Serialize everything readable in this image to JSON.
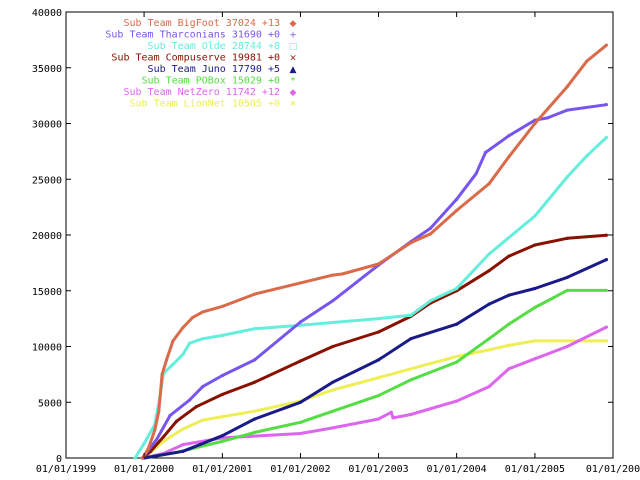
{
  "chart_data": {
    "type": "line",
    "xlabel": "",
    "ylabel": "",
    "x_axis": {
      "type": "date",
      "min": "1999-01-01",
      "max": "2006-01-01",
      "tick_labels": [
        "01/01/1999",
        "01/01/2000",
        "01/01/2001",
        "01/01/2002",
        "01/01/2003",
        "01/01/2004",
        "01/01/2005",
        "01/01/200"
      ]
    },
    "y_axis": {
      "min": 0,
      "max": 40000,
      "tick_labels": [
        "0",
        "5000",
        "10000",
        "15000",
        "20000",
        "25000",
        "30000",
        "35000",
        "40000"
      ]
    },
    "grid": false,
    "legend_position": "top-left",
    "series": [
      {
        "name": "Sub Team BigFoot 37024 +13",
        "color": "#d96a4a",
        "marker": "diamond",
        "points": [
          [
            "1999-12-25",
            0
          ],
          [
            "2000-01-20",
            800
          ],
          [
            "2000-02-20",
            2500
          ],
          [
            "2000-03-10",
            4200
          ],
          [
            "2000-03-25",
            7500
          ],
          [
            "2000-04-15",
            8800
          ],
          [
            "2000-05-15",
            10500
          ],
          [
            "2000-07-01",
            11700
          ],
          [
            "2000-08-15",
            12600
          ],
          [
            "2000-10-01",
            13100
          ],
          [
            "2001-01-01",
            13600
          ],
          [
            "2001-06-01",
            14700
          ],
          [
            "2002-01-01",
            15700
          ],
          [
            "2002-06-01",
            16400
          ],
          [
            "2002-07-15",
            16500
          ],
          [
            "2003-01-01",
            17400
          ],
          [
            "2003-06-01",
            19300
          ],
          [
            "2003-09-01",
            20100
          ],
          [
            "2004-01-01",
            22200
          ],
          [
            "2004-06-01",
            24600
          ],
          [
            "2004-09-01",
            27000
          ],
          [
            "2005-01-01",
            30000
          ],
          [
            "2005-06-01",
            33300
          ],
          [
            "2005-09-01",
            35600
          ],
          [
            "2005-12-01",
            37024
          ]
        ]
      },
      {
        "name": "Sub Team Tharconians 31690 +0",
        "color": "#7755ee",
        "marker": "plus",
        "points": [
          [
            "1999-12-25",
            0
          ],
          [
            "2000-03-01",
            1700
          ],
          [
            "2000-05-01",
            3800
          ],
          [
            "2000-08-01",
            5200
          ],
          [
            "2000-10-01",
            6400
          ],
          [
            "2001-01-01",
            7400
          ],
          [
            "2001-06-01",
            8800
          ],
          [
            "2002-01-01",
            12200
          ],
          [
            "2002-06-01",
            14100
          ],
          [
            "2003-01-01",
            17300
          ],
          [
            "2003-06-01",
            19400
          ],
          [
            "2003-09-01",
            20600
          ],
          [
            "2004-01-01",
            23200
          ],
          [
            "2004-04-01",
            25500
          ],
          [
            "2004-05-15",
            27400
          ],
          [
            "2004-09-01",
            28900
          ],
          [
            "2005-01-01",
            30300
          ],
          [
            "2005-03-01",
            30500
          ],
          [
            "2005-06-01",
            31200
          ],
          [
            "2005-12-01",
            31690
          ]
        ]
      },
      {
        "name": "Sub Team Olde 28744 +8",
        "color": "#66eedd",
        "marker": "square",
        "points": [
          [
            "1999-11-20",
            0
          ],
          [
            "2000-01-01",
            1300
          ],
          [
            "2000-02-20",
            3000
          ],
          [
            "2000-03-15",
            5500
          ],
          [
            "2000-04-01",
            7600
          ],
          [
            "2000-05-15",
            8400
          ],
          [
            "2000-07-01",
            9300
          ],
          [
            "2000-08-01",
            10300
          ],
          [
            "2000-10-01",
            10700
          ],
          [
            "2001-01-01",
            11000
          ],
          [
            "2001-06-01",
            11600
          ],
          [
            "2002-01-01",
            11900
          ],
          [
            "2002-06-01",
            12150
          ],
          [
            "2003-01-01",
            12500
          ],
          [
            "2003-06-01",
            12800
          ],
          [
            "2003-09-01",
            14100
          ],
          [
            "2004-01-01",
            15200
          ],
          [
            "2004-06-01",
            18300
          ],
          [
            "2005-01-01",
            21700
          ],
          [
            "2005-06-01",
            25200
          ],
          [
            "2005-09-01",
            27100
          ],
          [
            "2005-12-01",
            28744
          ]
        ]
      },
      {
        "name": "Sub Team Compuserve 19981 +0",
        "color": "#881100",
        "marker": "x",
        "points": [
          [
            "1999-12-25",
            0
          ],
          [
            "2000-02-01",
            600
          ],
          [
            "2000-04-01",
            1900
          ],
          [
            "2000-06-01",
            3300
          ],
          [
            "2000-09-01",
            4600
          ],
          [
            "2001-01-01",
            5700
          ],
          [
            "2001-06-01",
            6800
          ],
          [
            "2002-01-01",
            8700
          ],
          [
            "2002-06-01",
            10000
          ],
          [
            "2003-01-01",
            11300
          ],
          [
            "2003-06-01",
            12700
          ],
          [
            "2003-09-01",
            13900
          ],
          [
            "2004-01-01",
            15000
          ],
          [
            "2004-06-01",
            16800
          ],
          [
            "2004-09-01",
            18100
          ],
          [
            "2005-01-01",
            19100
          ],
          [
            "2005-06-01",
            19700
          ],
          [
            "2005-12-01",
            19981
          ]
        ]
      },
      {
        "name": "Sub Team Juno 17790 +5",
        "color": "#1a1a88",
        "marker": "triangle",
        "points": [
          [
            "2000-01-01",
            0
          ],
          [
            "2000-07-01",
            600
          ],
          [
            "2001-01-01",
            2000
          ],
          [
            "2001-06-01",
            3500
          ],
          [
            "2002-01-01",
            5000
          ],
          [
            "2002-06-01",
            6800
          ],
          [
            "2003-01-01",
            8800
          ],
          [
            "2003-06-01",
            10700
          ],
          [
            "2004-01-01",
            12000
          ],
          [
            "2004-06-01",
            13800
          ],
          [
            "2004-09-01",
            14600
          ],
          [
            "2005-01-01",
            15200
          ],
          [
            "2005-06-01",
            16200
          ],
          [
            "2005-12-01",
            17790
          ]
        ]
      },
      {
        "name": "Sub Team POBox 15029 +0",
        "color": "#55dd44",
        "marker": "asterisk",
        "points": [
          [
            "2000-01-01",
            0
          ],
          [
            "2000-06-01",
            500
          ],
          [
            "2001-01-01",
            1500
          ],
          [
            "2001-06-01",
            2300
          ],
          [
            "2002-01-01",
            3200
          ],
          [
            "2002-06-01",
            4200
          ],
          [
            "2003-01-01",
            5600
          ],
          [
            "2003-06-01",
            7000
          ],
          [
            "2004-01-01",
            8600
          ],
          [
            "2004-06-01",
            10700
          ],
          [
            "2004-09-01",
            12000
          ],
          [
            "2005-01-01",
            13500
          ],
          [
            "2005-06-01",
            15029
          ],
          [
            "2005-12-01",
            15029
          ]
        ]
      },
      {
        "name": "Sub Team NetZero 11742 +12",
        "color": "#dd66ee",
        "marker": "diamond",
        "points": [
          [
            "2000-01-01",
            0
          ],
          [
            "2000-04-01",
            400
          ],
          [
            "2000-07-01",
            1200
          ],
          [
            "2001-01-01",
            1800
          ],
          [
            "2002-01-01",
            2200
          ],
          [
            "2002-06-01",
            2700
          ],
          [
            "2003-01-01",
            3500
          ],
          [
            "2003-03-01",
            4100
          ],
          [
            "2003-03-10",
            3600
          ],
          [
            "2003-06-01",
            3900
          ],
          [
            "2004-01-01",
            5100
          ],
          [
            "2004-06-01",
            6400
          ],
          [
            "2004-09-01",
            8000
          ],
          [
            "2005-01-01",
            8900
          ],
          [
            "2005-06-01",
            10000
          ],
          [
            "2005-12-01",
            11742
          ]
        ]
      },
      {
        "name": "Sub Team LionNet 10505 +0",
        "color": "#eeee55",
        "marker": "star",
        "points": [
          [
            "2000-01-01",
            0
          ],
          [
            "2000-04-01",
            1500
          ],
          [
            "2000-07-01",
            2600
          ],
          [
            "2000-10-01",
            3400
          ],
          [
            "2001-01-01",
            3700
          ],
          [
            "2001-06-01",
            4200
          ],
          [
            "2002-01-01",
            5100
          ],
          [
            "2002-06-01",
            6100
          ],
          [
            "2003-01-01",
            7200
          ],
          [
            "2003-06-01",
            8000
          ],
          [
            "2004-01-01",
            9100
          ],
          [
            "2004-06-01",
            9700
          ],
          [
            "2004-09-01",
            10100
          ],
          [
            "2005-01-01",
            10505
          ],
          [
            "2005-12-01",
            10505
          ]
        ]
      }
    ]
  }
}
